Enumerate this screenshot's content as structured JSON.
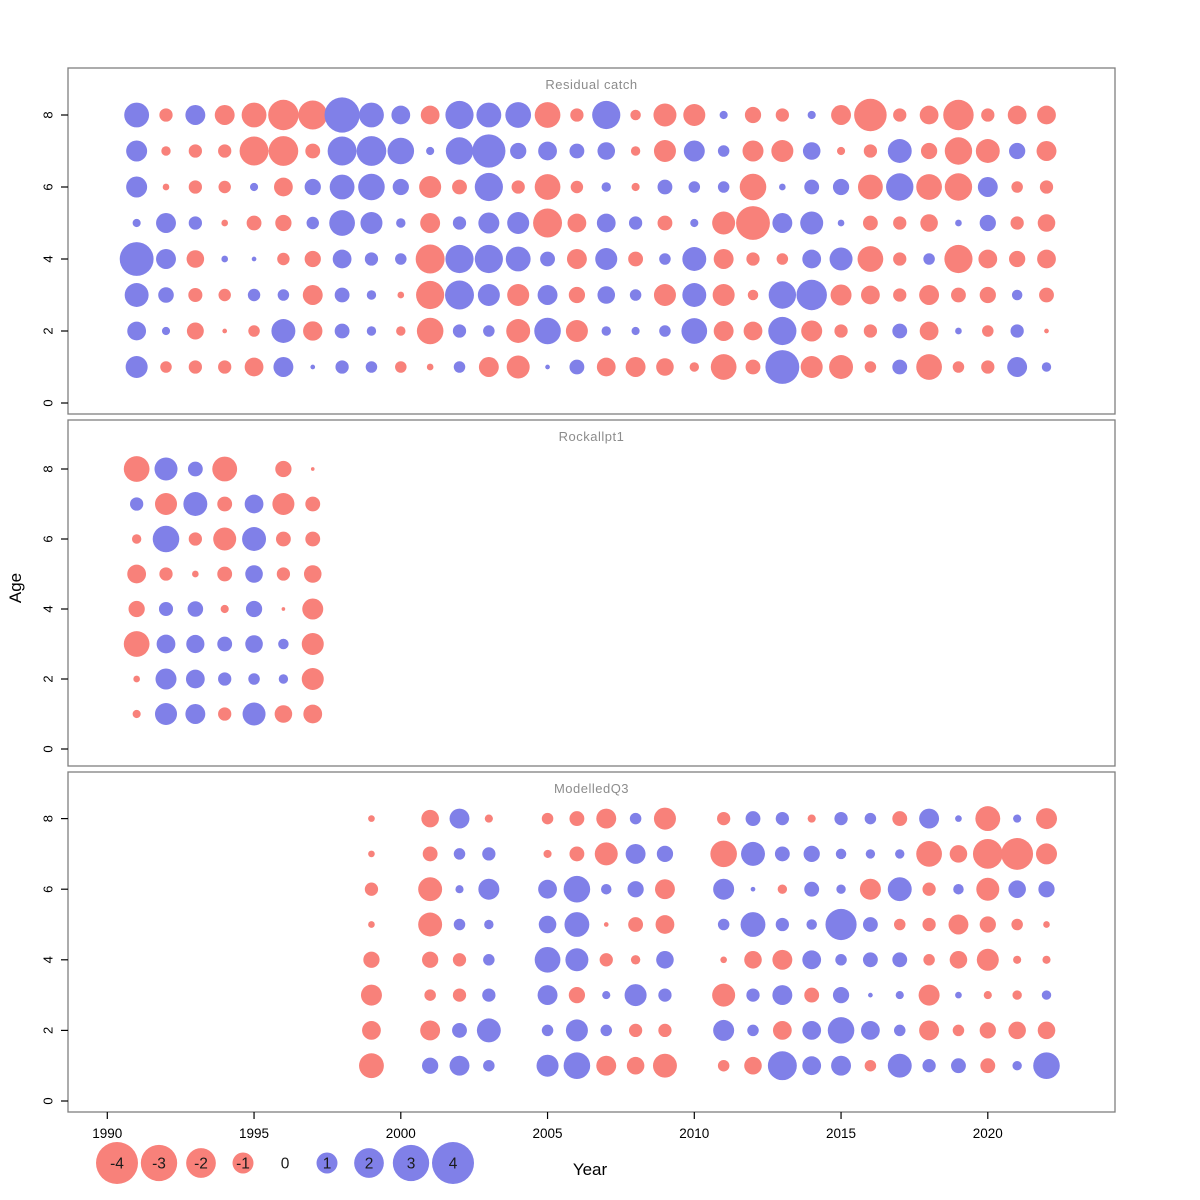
{
  "figure": {
    "kind": "residual-bubble-plot",
    "y_axis": {
      "label": "Age",
      "ticks": [
        0,
        2,
        4,
        6,
        8
      ]
    },
    "x_axis": {
      "label": "Year",
      "ticks": [
        1990,
        1995,
        2000,
        2005,
        2010,
        2015,
        2020
      ]
    },
    "legend": {
      "values": [
        -4,
        -3,
        -2,
        -1,
        0,
        1,
        2,
        3,
        4
      ]
    },
    "colors": {
      "positive": "#8080E8",
      "negative": "#F8817A",
      "panel_border": "#7f7f7f",
      "title_text": "#8c8c8c",
      "axis_text": "#000000",
      "legend_text": "#1a1a1a"
    }
  },
  "chart_data": {
    "type": "bubble",
    "description": "Log residuals by age and year; circle area ~ |value|, red = negative, blue = positive",
    "ages_order": [
      8,
      7,
      6,
      5,
      4,
      3,
      2,
      1
    ],
    "panels": [
      {
        "title": "Residual catch",
        "years": [
          1991,
          1992,
          1993,
          1994,
          1995,
          1996,
          1997,
          1998,
          1999,
          2000,
          2001,
          2002,
          2003,
          2004,
          2005,
          2006,
          2007,
          2008,
          2009,
          2010,
          2011,
          2012,
          2013,
          2014,
          2015,
          2016,
          2017,
          2018,
          2019,
          2020,
          2021,
          2022
        ],
        "values_by_age": {
          "8": [
            1.4,
            -0.4,
            0.9,
            -0.9,
            -1.4,
            -2.1,
            -1.9,
            2.8,
            1.4,
            0.8,
            -0.8,
            1.8,
            1.4,
            1.5,
            -1.5,
            -0.4,
            1.8,
            -0.25,
            -1.2,
            -1.1,
            0.15,
            -0.6,
            -0.4,
            0.15,
            -0.9,
            -2.4,
            -0.4,
            -0.8,
            -2.1,
            -0.4,
            -0.8,
            -0.8
          ],
          "7": [
            1.0,
            -0.2,
            -0.4,
            -0.4,
            -1.9,
            -2.0,
            -0.5,
            1.9,
            2.0,
            1.6,
            0.15,
            1.7,
            2.5,
            0.6,
            0.8,
            0.5,
            0.7,
            -0.2,
            -1.1,
            1.0,
            0.3,
            -1.0,
            -1.1,
            0.7,
            -0.15,
            -0.4,
            1.3,
            -0.6,
            -1.7,
            -1.3,
            0.6,
            -0.9
          ],
          "6": [
            1.0,
            -0.1,
            -0.4,
            -0.35,
            0.15,
            -0.8,
            0.6,
            1.4,
            1.6,
            0.6,
            -1.1,
            -0.5,
            1.8,
            -0.4,
            -1.5,
            -0.35,
            0.2,
            -0.15,
            0.5,
            0.3,
            0.3,
            -1.6,
            0.1,
            0.5,
            0.6,
            -1.4,
            1.7,
            -1.5,
            -1.7,
            0.9,
            -0.3,
            -0.4
          ],
          "5": [
            0.15,
            0.9,
            0.4,
            -0.1,
            -0.5,
            -0.6,
            0.35,
            1.5,
            1.1,
            0.2,
            -0.9,
            0.4,
            1.0,
            1.1,
            -1.9,
            -0.8,
            0.8,
            0.4,
            -0.5,
            0.15,
            -1.2,
            -2.6,
            0.9,
            1.2,
            0.1,
            -0.5,
            -0.4,
            -0.7,
            0.1,
            0.6,
            -0.4,
            -0.7
          ],
          "4": [
            2.6,
            0.9,
            -0.7,
            0.1,
            0.05,
            -0.35,
            -0.6,
            0.8,
            0.4,
            0.3,
            -1.9,
            1.8,
            1.8,
            1.4,
            0.5,
            -0.9,
            1.1,
            -0.5,
            0.3,
            1.3,
            -0.9,
            -0.4,
            -0.3,
            0.8,
            1.2,
            -1.5,
            -0.4,
            0.3,
            -1.8,
            -0.8,
            -0.6,
            -0.8
          ],
          "3": [
            1.3,
            0.55,
            -0.45,
            -0.35,
            0.35,
            0.3,
            -0.9,
            0.5,
            0.2,
            -0.1,
            -1.8,
            1.9,
            1.1,
            -1.1,
            0.9,
            -0.6,
            0.7,
            0.3,
            -1.1,
            1.3,
            -1.1,
            -0.25,
            1.7,
            2.1,
            -1.0,
            -0.8,
            -0.4,
            -0.9,
            -0.5,
            -0.6,
            0.25,
            -0.5
          ],
          "2": [
            0.8,
            0.15,
            -0.65,
            -0.05,
            -0.3,
            1.3,
            -0.85,
            0.5,
            0.2,
            -0.2,
            -1.6,
            0.4,
            0.3,
            -1.3,
            1.6,
            -1.1,
            0.2,
            0.15,
            0.3,
            1.5,
            -0.9,
            -0.8,
            1.8,
            -1.0,
            -0.4,
            -0.4,
            0.5,
            -0.8,
            0.1,
            -0.3,
            0.4,
            -0.05
          ],
          "1": [
            1.1,
            -0.3,
            -0.4,
            -0.4,
            -0.8,
            0.9,
            0.05,
            0.4,
            0.3,
            -0.3,
            -0.1,
            0.3,
            -0.9,
            -1.2,
            0.05,
            0.5,
            -0.8,
            -0.9,
            -0.7,
            -0.2,
            -1.5,
            -0.5,
            2.6,
            -1.1,
            -1.3,
            -0.3,
            0.5,
            -1.5,
            -0.3,
            -0.4,
            0.9,
            0.2
          ]
        }
      },
      {
        "title": "Rockallpt1",
        "years": [
          1991,
          1992,
          1993,
          1994,
          1995,
          1996,
          1997
        ],
        "values_by_age": {
          "8": [
            -1.5,
            1.2,
            0.5,
            -1.4,
            null,
            -0.6,
            -0.03
          ],
          "7": [
            0.4,
            -1.1,
            1.3,
            -0.5,
            0.8,
            -1.1,
            -0.5
          ],
          "6": [
            -0.2,
            1.6,
            -0.4,
            -1.2,
            1.3,
            -0.5,
            -0.5
          ],
          "5": [
            -0.8,
            -0.4,
            -0.1,
            -0.5,
            0.7,
            -0.4,
            -0.7
          ],
          "4": [
            -0.6,
            0.45,
            0.55,
            -0.15,
            0.6,
            -0.03,
            -1.0
          ],
          "3": [
            -1.5,
            0.8,
            0.75,
            0.5,
            0.7,
            0.25,
            -1.1
          ],
          "2": [
            -0.1,
            1.0,
            0.8,
            0.4,
            0.3,
            0.2,
            -1.1
          ],
          "1": [
            -0.15,
            1.1,
            0.9,
            -0.4,
            1.2,
            -0.7,
            -0.8
          ]
        }
      },
      {
        "title": "ModelledQ3",
        "years": [
          1999,
          2001,
          2002,
          2003,
          2005,
          2006,
          2007,
          2008,
          2009,
          2011,
          2012,
          2013,
          2014,
          2015,
          2016,
          2017,
          2018,
          2019,
          2020,
          2021,
          2022
        ],
        "values_by_age": {
          "8": [
            -0.1,
            -0.7,
            0.9,
            -0.15,
            -0.3,
            -0.5,
            -0.9,
            0.3,
            -1.1,
            -0.4,
            0.5,
            0.4,
            -0.15,
            0.4,
            0.3,
            -0.5,
            0.9,
            0.1,
            -1.4,
            0.15,
            -1.0
          ],
          "7": [
            -0.1,
            -0.5,
            0.3,
            0.4,
            -0.15,
            -0.5,
            -1.2,
            0.9,
            0.6,
            -1.6,
            1.3,
            0.5,
            0.6,
            0.25,
            0.2,
            0.2,
            -1.5,
            -0.7,
            -2.0,
            -2.3,
            -1.0
          ],
          "6": [
            -0.4,
            -1.3,
            0.15,
            1.0,
            0.8,
            1.6,
            0.25,
            0.6,
            -0.9,
            1.0,
            0.05,
            -0.2,
            0.5,
            0.2,
            -1.0,
            1.3,
            -0.4,
            0.25,
            -1.2,
            0.7,
            0.6
          ],
          "5": [
            -0.1,
            -1.3,
            0.3,
            0.2,
            0.7,
            1.4,
            -0.05,
            -0.5,
            -0.8,
            0.3,
            1.4,
            0.4,
            0.25,
            2.2,
            0.5,
            -0.3,
            -0.4,
            -0.9,
            -0.6,
            -0.3,
            -0.1
          ],
          "4": [
            -0.6,
            -0.6,
            -0.4,
            0.3,
            1.5,
            1.2,
            -0.4,
            -0.2,
            0.7,
            -0.1,
            -0.7,
            -0.9,
            0.8,
            0.3,
            0.5,
            0.5,
            -0.3,
            -0.7,
            -1.1,
            -0.15,
            -0.15
          ],
          "3": [
            -1.0,
            -0.3,
            -0.4,
            0.4,
            0.9,
            -0.6,
            0.15,
            1.1,
            0.4,
            -1.2,
            0.4,
            0.9,
            -0.5,
            0.6,
            0.05,
            0.15,
            -1.0,
            0.1,
            -0.15,
            -0.2,
            0.2
          ],
          "2": [
            -0.8,
            -0.9,
            0.5,
            1.3,
            0.3,
            1.1,
            0.3,
            -0.4,
            -0.4,
            1.0,
            0.3,
            -0.8,
            0.8,
            1.6,
            0.8,
            0.3,
            -0.9,
            -0.3,
            -0.6,
            -0.7,
            -0.7
          ],
          "1": [
            -1.4,
            0.6,
            0.9,
            0.3,
            1.1,
            1.6,
            -0.9,
            -0.7,
            -1.3,
            -0.3,
            -0.7,
            1.9,
            0.8,
            0.9,
            -0.3,
            1.3,
            0.4,
            0.5,
            -0.5,
            0.2,
            1.6
          ]
        }
      }
    ]
  }
}
